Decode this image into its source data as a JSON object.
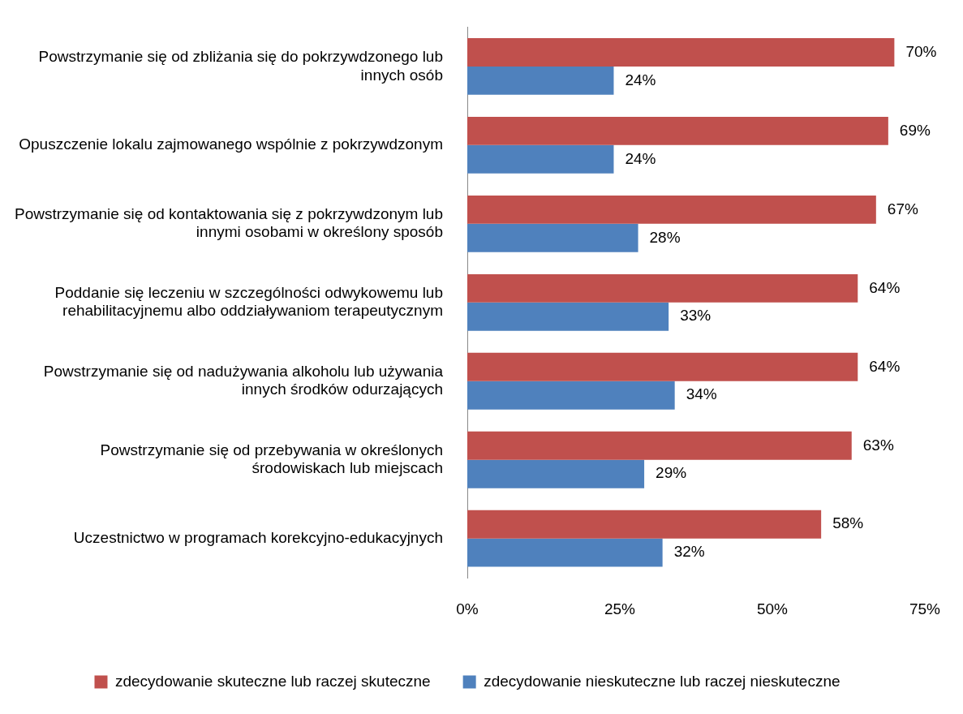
{
  "chart_data": {
    "type": "bar",
    "orientation": "horizontal",
    "categories": [
      "Powstrzymanie się od zbliżania się do pokrzywdzonego lub innych osób",
      "Opuszczenie lokalu zajmowanego wspólnie z pokrzywdzonym",
      "Powstrzymanie się od kontaktowania się z pokrzywdzonym lub innymi osobami w określony sposób",
      "Poddanie się leczeniu w szczególności odwykowemu lub rehabilitacyjnemu albo oddziaływaniom terapeutycznym",
      "Powstrzymanie się od nadużywania alkoholu lub używania innych środków odurzających",
      "Powstrzymanie się od przebywania w określonych środowiskach lub miejscach",
      "Uczestnictwo w programach korekcyjno-edukacyjnych"
    ],
    "series": [
      {
        "name": "zdecydowanie skuteczne lub raczej skuteczne",
        "color": "#c0504d",
        "values": [
          70,
          69,
          67,
          64,
          64,
          63,
          58
        ],
        "value_labels": [
          "70%",
          "69%",
          "67%",
          "64%",
          "64%",
          "63%",
          "58%"
        ]
      },
      {
        "name": "zdecydowanie nieskuteczne lub raczej nieskuteczne",
        "color": "#4f81bd",
        "values": [
          24,
          24,
          28,
          33,
          34,
          29,
          32
        ],
        "value_labels": [
          "24%",
          "24%",
          "28%",
          "33%",
          "34%",
          "29%",
          "32%"
        ]
      }
    ],
    "xlim": [
      0,
      75
    ],
    "xticks": [
      {
        "value": 0,
        "label": "0%"
      },
      {
        "value": 25,
        "label": "25%"
      },
      {
        "value": 50,
        "label": "50%"
      },
      {
        "value": 75,
        "label": "75%"
      }
    ],
    "grid": false,
    "legend": "bottom"
  }
}
